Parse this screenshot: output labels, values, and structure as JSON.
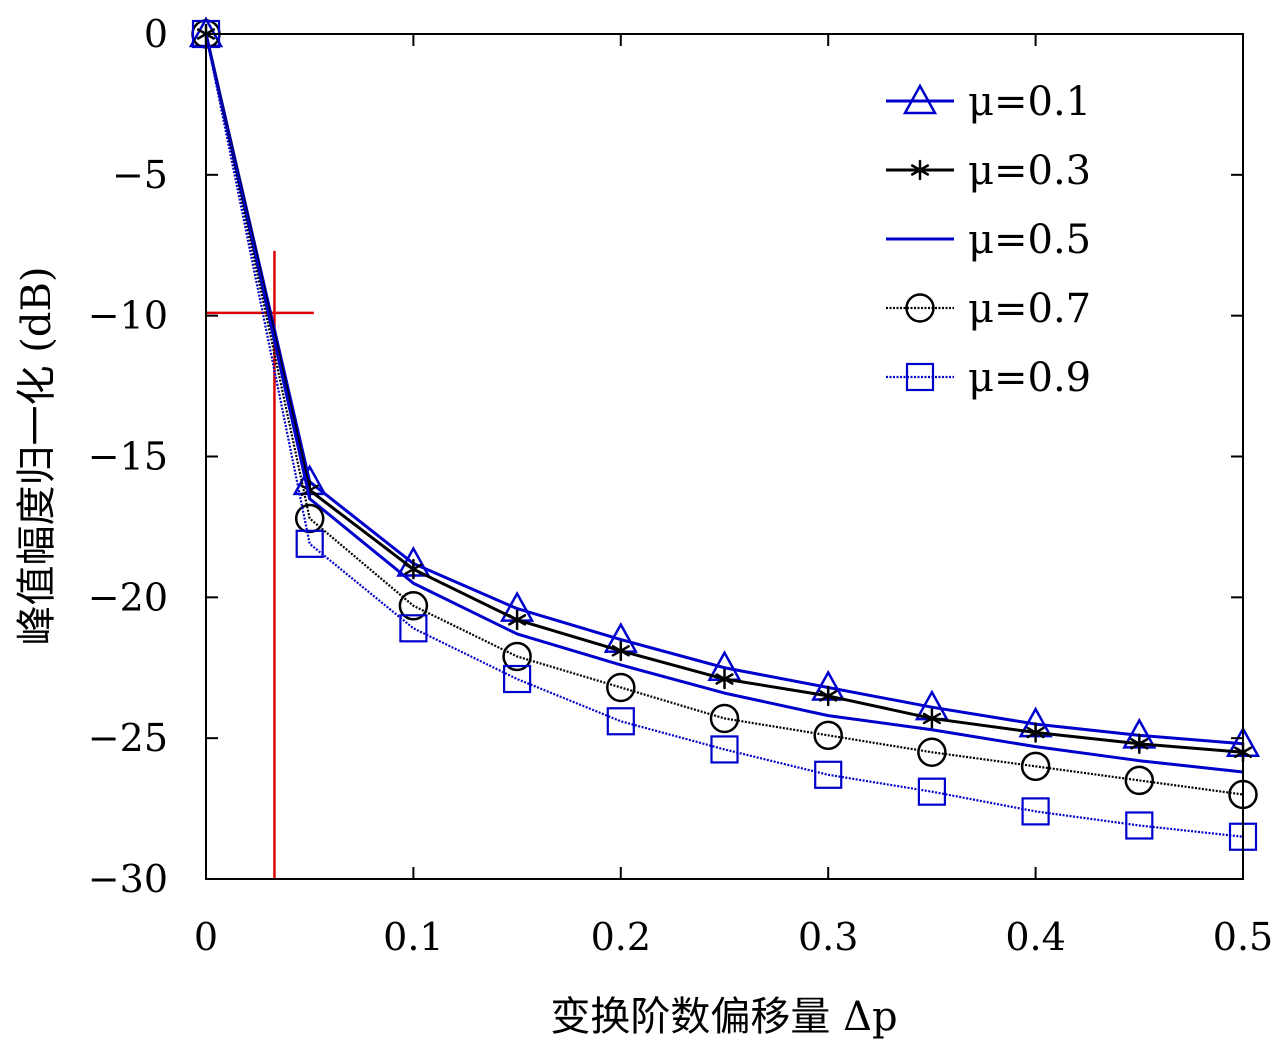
{
  "chart_data": {
    "type": "line",
    "xlabel": "变换阶数偏移量 Δp",
    "ylabel": "峰值幅度归一化 (dB)",
    "xlim": [
      0,
      0.5
    ],
    "ylim": [
      -30,
      0
    ],
    "xticks": [
      0,
      0.1,
      0.2,
      0.3,
      0.4,
      0.5
    ],
    "xtick_labels": [
      "0",
      "0.1",
      "0.2",
      "0.3",
      "0.4",
      "0.5"
    ],
    "yticks": [
      0,
      -5,
      -10,
      -15,
      -20,
      -25,
      -30
    ],
    "ytick_labels": [
      "0",
      "−5",
      "−10",
      "−15",
      "−20",
      "−25",
      "−30"
    ],
    "grid": false,
    "legend_position": "top-right",
    "x": [
      0,
      0.05,
      0.1,
      0.15,
      0.2,
      0.25,
      0.3,
      0.35,
      0.4,
      0.45,
      0.5
    ],
    "series": [
      {
        "name": "μ=0.1",
        "color": "#0000cc",
        "marker": "triangle",
        "line": "solid",
        "values": [
          0,
          -15.9,
          -18.8,
          -20.4,
          -21.5,
          -22.5,
          -23.2,
          -23.9,
          -24.5,
          -24.9,
          -25.2
        ]
      },
      {
        "name": "μ=0.3",
        "color": "#000000",
        "marker": "star",
        "line": "solid",
        "values": [
          0,
          -16.2,
          -19.0,
          -20.8,
          -21.9,
          -22.9,
          -23.5,
          -24.3,
          -24.8,
          -25.2,
          -25.5
        ]
      },
      {
        "name": "μ=0.5",
        "color": "#0000cc",
        "marker": "none",
        "line": "solid",
        "values": [
          0,
          -16.5,
          -19.5,
          -21.3,
          -22.4,
          -23.4,
          -24.2,
          -24.7,
          -25.3,
          -25.8,
          -26.2
        ]
      },
      {
        "name": "μ=0.7",
        "color": "#000000",
        "marker": "circle",
        "line": "dotted",
        "values": [
          0,
          -17.2,
          -20.3,
          -22.1,
          -23.2,
          -24.3,
          -24.9,
          -25.5,
          -26.0,
          -26.5,
          -27.0
        ]
      },
      {
        "name": "μ=0.9",
        "color": "#0000cc",
        "marker": "square",
        "line": "dotted",
        "values": [
          0,
          -18.1,
          -21.1,
          -22.9,
          -24.4,
          -25.4,
          -26.3,
          -26.9,
          -27.6,
          -28.1,
          -28.5
        ]
      }
    ],
    "annotations": [
      {
        "type": "crosshair",
        "color": "#dd0000",
        "x": 0.033,
        "y": -9.9,
        "x_extent": [
          0,
          0.052
        ],
        "y_extent": [
          -30,
          -7.7
        ]
      }
    ]
  }
}
